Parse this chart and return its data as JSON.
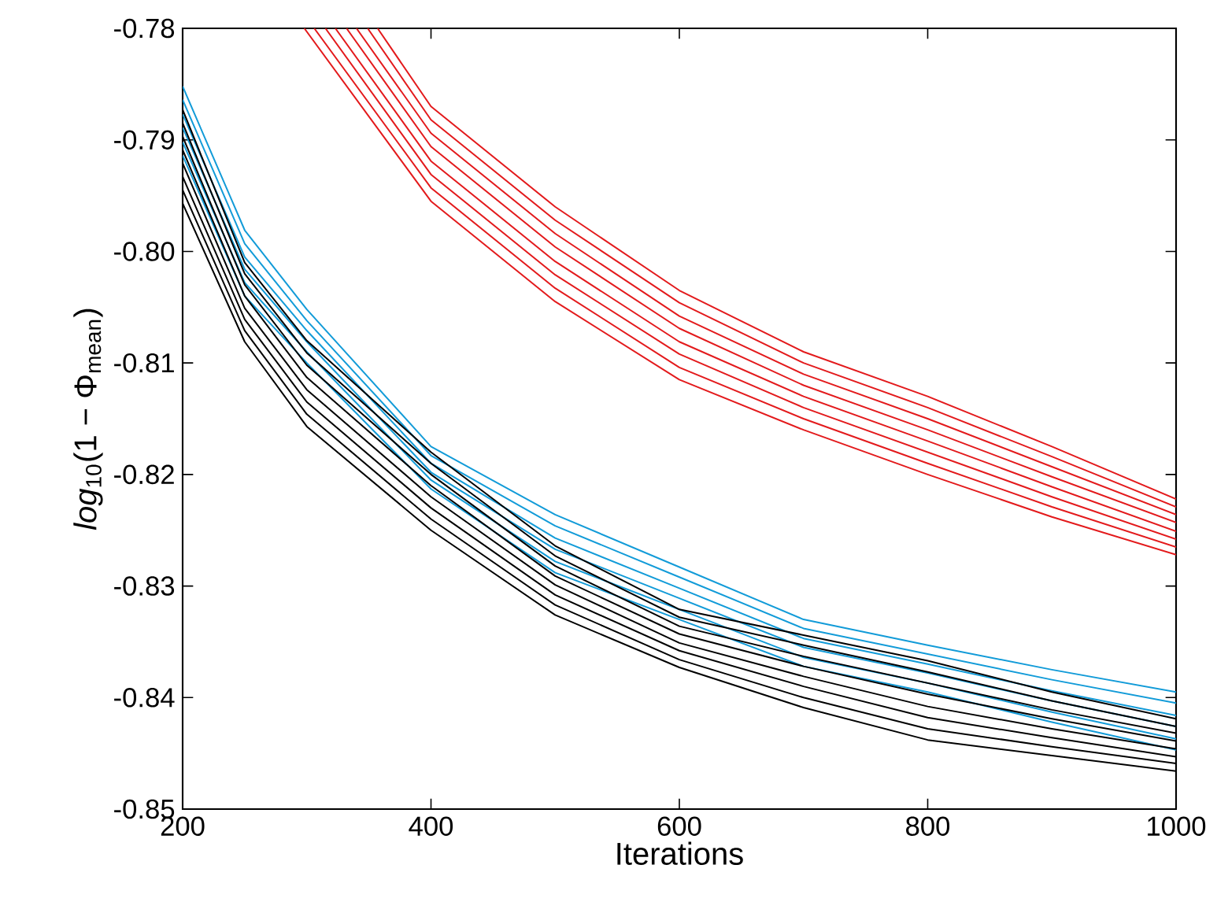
{
  "chart_data": {
    "type": "line",
    "xlabel": "Iterations",
    "ylabel": "*log*$_{10}$(1 − Φ$_{mean}$)",
    "x": [
      200,
      250,
      300,
      400,
      500,
      600,
      700,
      800,
      900,
      1000
    ],
    "xlim": [
      200,
      1000
    ],
    "ylim": [
      -0.85,
      -0.78
    ],
    "xticks": [
      200,
      400,
      600,
      800,
      1000
    ],
    "yticks": [
      -0.85,
      -0.84,
      -0.83,
      -0.82,
      -0.81,
      {
        "value": -0.8,
        "label": "-0.80"
      },
      -0.79,
      -0.78
    ],
    "line_style": "solid",
    "series": [
      {
        "color": "#e31a1c",
        "x": [
          357,
          400,
          500,
          600,
          700,
          800,
          900,
          1000
        ],
        "values": [
          -0.78,
          -0.787,
          -0.796,
          -0.8035,
          -0.809,
          -0.813,
          -0.8175,
          -0.8222
        ]
      },
      {
        "color": "#e31a1c",
        "x": [
          349,
          400,
          500,
          600,
          700,
          800,
          900,
          1000
        ],
        "values": [
          -0.78,
          -0.7882,
          -0.7972,
          -0.8046,
          -0.81,
          -0.814,
          -0.8184,
          -0.8229
        ]
      },
      {
        "color": "#e31a1c",
        "x": [
          340,
          400,
          500,
          600,
          700,
          800,
          900,
          1000
        ],
        "values": [
          -0.78,
          -0.7894,
          -0.7984,
          -0.8058,
          -0.811,
          -0.815,
          -0.8193,
          -0.8236
        ]
      },
      {
        "color": "#e31a1c",
        "x": [
          332,
          400,
          500,
          600,
          700,
          800,
          900,
          1000
        ],
        "values": [
          -0.78,
          -0.7906,
          -0.7996,
          -0.8069,
          -0.812,
          -0.816,
          -0.8202,
          -0.8243
        ]
      },
      {
        "color": "#e31a1c",
        "x": [
          323,
          400,
          500,
          600,
          700,
          800,
          900,
          1000
        ],
        "values": [
          -0.78,
          -0.7919,
          -0.8009,
          -0.8081,
          -0.813,
          -0.817,
          -0.8211,
          -0.8251
        ]
      },
      {
        "color": "#e31a1c",
        "x": [
          315,
          400,
          500,
          600,
          700,
          800,
          900,
          1000
        ],
        "values": [
          -0.78,
          -0.7931,
          -0.8021,
          -0.8092,
          -0.814,
          -0.818,
          -0.822,
          -0.8258
        ]
      },
      {
        "color": "#e31a1c",
        "x": [
          306,
          400,
          500,
          600,
          700,
          800,
          900,
          1000
        ],
        "values": [
          -0.78,
          -0.7943,
          -0.8033,
          -0.8104,
          -0.815,
          -0.819,
          -0.8229,
          -0.8265
        ]
      },
      {
        "color": "#e31a1c",
        "x": [
          298,
          400,
          500,
          600,
          700,
          800,
          900,
          1000
        ],
        "values": [
          -0.78,
          -0.7955,
          -0.8045,
          -0.8115,
          -0.816,
          -0.82,
          -0.8238,
          -0.8272
        ]
      },
      {
        "color": "#129bd8",
        "values": [
          -0.7852,
          -0.7981,
          -0.8052,
          -0.8175,
          -0.8236,
          -0.8283,
          -0.833,
          -0.8353,
          -0.8375,
          -0.8395
        ]
      },
      {
        "color": "#129bd8",
        "values": [
          -0.7864,
          -0.7993,
          -0.8062,
          -0.8183,
          -0.8246,
          -0.8292,
          -0.8338,
          -0.8361,
          -0.8384,
          -0.8405
        ]
      },
      {
        "color": "#129bd8",
        "values": [
          -0.7877,
          -0.8005,
          -0.8071,
          -0.819,
          -0.8257,
          -0.8302,
          -0.8347,
          -0.837,
          -0.8394,
          -0.8416
        ]
      },
      {
        "color": "#129bd8",
        "values": [
          -0.7889,
          -0.8016,
          -0.8081,
          -0.8198,
          -0.8267,
          -0.8311,
          -0.8355,
          -0.8378,
          -0.8403,
          -0.8426
        ]
      },
      {
        "color": "#129bd8",
        "values": [
          -0.7902,
          -0.8028,
          -0.809,
          -0.8205,
          -0.8278,
          -0.8321,
          -0.8364,
          -0.8387,
          -0.8413,
          -0.8437
        ]
      },
      {
        "color": "#129bd8",
        "values": [
          -0.7914,
          -0.804,
          -0.81,
          -0.8213,
          -0.8288,
          -0.833,
          -0.8372,
          -0.8395,
          -0.8422,
          -0.8447
        ]
      },
      {
        "color": "#000000",
        "values": [
          -0.7873,
          -0.801,
          -0.808,
          -0.818,
          -0.8264,
          -0.8321,
          -0.8344,
          -0.8367,
          -0.8395,
          -0.8419
        ]
      },
      {
        "color": "#000000",
        "values": [
          -0.7885,
          -0.802,
          -0.8091,
          -0.819,
          -0.8273,
          -0.8328,
          -0.8353,
          -0.8377,
          -0.8403,
          -0.8426
        ]
      },
      {
        "color": "#000000",
        "values": [
          -0.7897,
          -0.803,
          -0.8102,
          -0.82,
          -0.8282,
          -0.8336,
          -0.8363,
          -0.8387,
          -0.8411,
          -0.8432
        ]
      },
      {
        "color": "#000000",
        "values": [
          -0.7909,
          -0.804,
          -0.8113,
          -0.821,
          -0.8291,
          -0.8343,
          -0.8372,
          -0.8397,
          -0.8419,
          -0.8439
        ]
      },
      {
        "color": "#000000",
        "values": [
          -0.7921,
          -0.8051,
          -0.8124,
          -0.822,
          -0.8299,
          -0.8351,
          -0.8381,
          -0.8408,
          -0.8428,
          -0.8446
        ]
      },
      {
        "color": "#000000",
        "values": [
          -0.7933,
          -0.8061,
          -0.8135,
          -0.823,
          -0.8308,
          -0.8358,
          -0.839,
          -0.8418,
          -0.8436,
          -0.8453
        ]
      },
      {
        "color": "#000000",
        "values": [
          -0.7945,
          -0.8071,
          -0.8146,
          -0.824,
          -0.8317,
          -0.8366,
          -0.84,
          -0.8428,
          -0.8444,
          -0.8459
        ]
      },
      {
        "color": "#000000",
        "values": [
          -0.7957,
          -0.8081,
          -0.8157,
          -0.825,
          -0.8326,
          -0.8373,
          -0.8409,
          -0.8438,
          -0.8452,
          -0.8466
        ]
      }
    ]
  }
}
